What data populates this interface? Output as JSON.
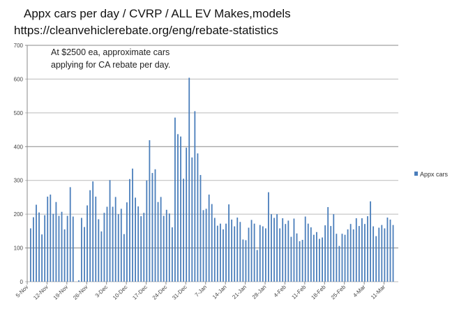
{
  "title_line1": "Appx cars per day / CVRP / ALL EV Makes,models",
  "title_line2": "https://cleanvehiclerebate.org/eng/rebate-statistics",
  "chart_data": {
    "type": "bar",
    "title": "Appx cars per day / CVRP / ALL EV Makes,models",
    "annotation": [
      "At $2500 ea, approximate cars",
      "applying for CA rebate per day."
    ],
    "xlabel": "",
    "ylabel": "",
    "ylim": [
      0,
      700
    ],
    "yticks": [
      0,
      100,
      200,
      300,
      400,
      500,
      600,
      700
    ],
    "xtick_labels": [
      "5-Nov",
      "12-Nov",
      "19-Nov",
      "26-Nov",
      "3-Dec",
      "10-Dec",
      "17-Dec",
      "24-Dec",
      "31-Dec",
      "7-Jan",
      "14-Jan",
      "21-Jan",
      "28-Jan",
      "4-Feb",
      "11-Feb",
      "18-Feb",
      "25-Feb",
      "4-Mar",
      "11-Mar"
    ],
    "grid": true,
    "legend_position": "right",
    "series": [
      {
        "name": "Appx cars",
        "color": "#4a7ebb",
        "values": [
          158,
          191,
          228,
          205,
          140,
          197,
          252,
          258,
          201,
          236,
          195,
          207,
          155,
          195,
          280,
          193,
          0,
          4,
          189,
          162,
          226,
          271,
          297,
          252,
          185,
          149,
          204,
          222,
          301,
          222,
          251,
          200,
          216,
          141,
          235,
          304,
          335,
          249,
          223,
          194,
          204,
          300,
          419,
          322,
          333,
          236,
          251,
          195,
          213,
          202,
          161,
          486,
          437,
          430,
          305,
          397,
          604,
          368,
          505,
          380,
          316,
          212,
          216,
          258,
          230,
          189,
          166,
          172,
          155,
          172,
          229,
          184,
          164,
          190,
          177,
          125,
          123,
          160,
          183,
          172,
          94,
          168,
          164,
          158,
          265,
          200,
          189,
          200,
          158,
          188,
          171,
          181,
          133,
          187,
          143,
          120,
          124,
          193,
          172,
          161,
          139,
          147,
          127,
          131,
          167,
          221,
          165,
          200,
          142,
          106,
          142,
          139,
          155,
          171,
          155,
          188,
          165,
          188,
          171,
          194,
          238,
          164,
          135,
          160,
          168,
          158,
          190,
          184,
          168
        ]
      }
    ]
  }
}
